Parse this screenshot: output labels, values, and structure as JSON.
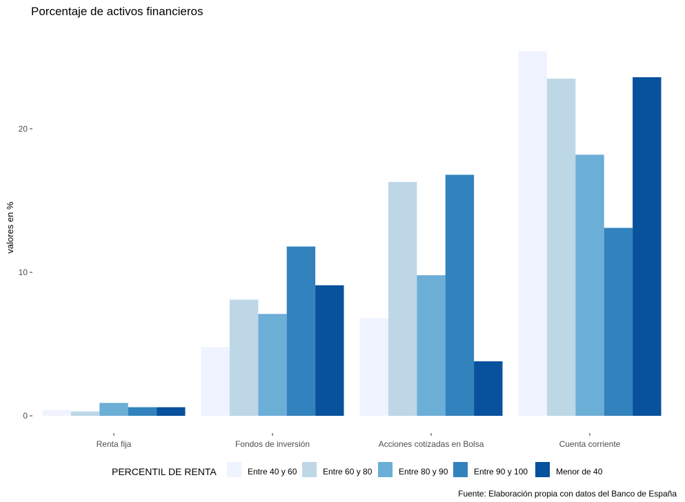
{
  "chart_data": {
    "type": "bar",
    "title": "Porcentaje de activos financieros",
    "ylabel": "valores en %",
    "xlabel": "",
    "categories": [
      "Renta fija",
      "Fondos de inversión",
      "Acciones cotizadas en Bolsa",
      "Cuenta corriente"
    ],
    "series": [
      {
        "name": "Entre 40 y 60",
        "color": "#eff3ff",
        "values": [
          0.4,
          4.8,
          6.8,
          25.4
        ]
      },
      {
        "name": "Entre 60 y 80",
        "color": "#bdd7e7",
        "values": [
          0.3,
          8.1,
          16.3,
          23.5
        ]
      },
      {
        "name": "Entre 80 y 90",
        "color": "#6baed6",
        "values": [
          0.9,
          7.1,
          9.8,
          18.2
        ]
      },
      {
        "name": "Entre 90 y 100",
        "color": "#3182bd",
        "values": [
          0.6,
          11.8,
          16.8,
          13.1
        ]
      },
      {
        "name": "Menor de 40",
        "color": "#08519c",
        "values": [
          0.6,
          9.1,
          3.8,
          23.6
        ]
      }
    ],
    "y_ticks": [
      0,
      10,
      20
    ],
    "ylim": [
      -1.2,
      27.3
    ],
    "grid": false,
    "legend": {
      "title": "PERCENTIL DE RENTA",
      "position": "bottom"
    },
    "caption": "Fuente: Elaboración propia con datos del Banco de España"
  }
}
